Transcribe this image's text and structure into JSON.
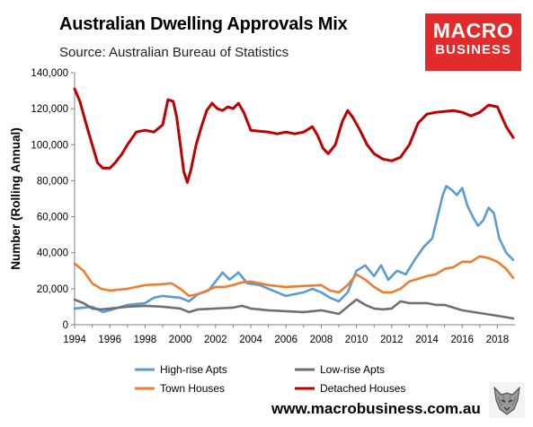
{
  "header": {
    "title": "Australian Dwelling Approvals Mix",
    "subtitle": "Source: Australian Bureau of Statistics"
  },
  "logo": {
    "line1": "MACRO",
    "line2": "BUSINESS"
  },
  "footer": {
    "url": "www.macrobusiness.com.au"
  },
  "colors": {
    "high_rise": "#5b9bd5",
    "low_rise": "#707070",
    "town": "#ed7d31",
    "detached": "#c00000",
    "logo_red": "#e32b2b"
  },
  "chart_data": {
    "type": "line",
    "ylabel": "Number (Rolling Annual)",
    "xlabel": "",
    "ylim": [
      0,
      140000
    ],
    "xlim": [
      1994,
      2019
    ],
    "yticks": [
      "0",
      "20,000",
      "40,000",
      "60,000",
      "80,000",
      "100,000",
      "120,000",
      "140,000"
    ],
    "xticks": [
      "1994",
      "1996",
      "1998",
      "2000",
      "2002",
      "2004",
      "2006",
      "2008",
      "2010",
      "2012",
      "2014",
      "2016",
      "2018"
    ],
    "grid": false,
    "legend_position": "bottom",
    "series": [
      {
        "name": "High-rise Apts",
        "color_key": "high_rise",
        "points": [
          [
            1994,
            9000
          ],
          [
            1995,
            10000
          ],
          [
            1995.6,
            7000
          ],
          [
            1996,
            8000
          ],
          [
            1997,
            11000
          ],
          [
            1998,
            12000
          ],
          [
            1998.5,
            15000
          ],
          [
            1999,
            16000
          ],
          [
            2000,
            15000
          ],
          [
            2000.5,
            13000
          ],
          [
            2001,
            17000
          ],
          [
            2001.6,
            19000
          ],
          [
            2002,
            24000
          ],
          [
            2002.4,
            29000
          ],
          [
            2002.8,
            25000
          ],
          [
            2003.3,
            29000
          ],
          [
            2003.8,
            23000
          ],
          [
            2004.5,
            22000
          ],
          [
            2005,
            20000
          ],
          [
            2005.5,
            18000
          ],
          [
            2006,
            16000
          ],
          [
            2007,
            18000
          ],
          [
            2007.5,
            20000
          ],
          [
            2008,
            18000
          ],
          [
            2008.5,
            15000
          ],
          [
            2009,
            13000
          ],
          [
            2009.5,
            18000
          ],
          [
            2010,
            30000
          ],
          [
            2010.5,
            33000
          ],
          [
            2011,
            27000
          ],
          [
            2011.4,
            33000
          ],
          [
            2011.8,
            25000
          ],
          [
            2012.3,
            30000
          ],
          [
            2012.8,
            28000
          ],
          [
            2013.3,
            36000
          ],
          [
            2013.8,
            43000
          ],
          [
            2014.3,
            48000
          ],
          [
            2014.6,
            60000
          ],
          [
            2014.9,
            72000
          ],
          [
            2015.1,
            77000
          ],
          [
            2015.4,
            75000
          ],
          [
            2015.7,
            72000
          ],
          [
            2016,
            76000
          ],
          [
            2016.3,
            66000
          ],
          [
            2016.6,
            60000
          ],
          [
            2016.9,
            55000
          ],
          [
            2017.2,
            58000
          ],
          [
            2017.5,
            65000
          ],
          [
            2017.8,
            62000
          ],
          [
            2018.1,
            48000
          ],
          [
            2018.5,
            40000
          ],
          [
            2018.9,
            36000
          ]
        ]
      },
      {
        "name": "Low-rise Apts",
        "color_key": "low_rise",
        "points": [
          [
            1994,
            14000
          ],
          [
            1994.5,
            12000
          ],
          [
            1995,
            9000
          ],
          [
            1995.5,
            8500
          ],
          [
            1996,
            9000
          ],
          [
            1997,
            10000
          ],
          [
            1998,
            10500
          ],
          [
            1999,
            10000
          ],
          [
            1999.5,
            9500
          ],
          [
            2000,
            9000
          ],
          [
            2000.5,
            7000
          ],
          [
            2001,
            8500
          ],
          [
            2002,
            9000
          ],
          [
            2003,
            9500
          ],
          [
            2003.5,
            10500
          ],
          [
            2004,
            9000
          ],
          [
            2005,
            8000
          ],
          [
            2006,
            7500
          ],
          [
            2007,
            7000
          ],
          [
            2008,
            8000
          ],
          [
            2008.5,
            7000
          ],
          [
            2009,
            6000
          ],
          [
            2009.5,
            10000
          ],
          [
            2010,
            14000
          ],
          [
            2010.5,
            11000
          ],
          [
            2011,
            9000
          ],
          [
            2011.5,
            8500
          ],
          [
            2012,
            9000
          ],
          [
            2012.5,
            13000
          ],
          [
            2013,
            12000
          ],
          [
            2014,
            12000
          ],
          [
            2014.5,
            11000
          ],
          [
            2015,
            11000
          ],
          [
            2015.5,
            9500
          ],
          [
            2016,
            8000
          ],
          [
            2017,
            6500
          ],
          [
            2018,
            5000
          ],
          [
            2018.9,
            3500
          ]
        ]
      },
      {
        "name": "Town Houses",
        "color_key": "town",
        "points": [
          [
            1994,
            34000
          ],
          [
            1994.5,
            30000
          ],
          [
            1995,
            23000
          ],
          [
            1995.5,
            20000
          ],
          [
            1996,
            19000
          ],
          [
            1997,
            20000
          ],
          [
            1998,
            22000
          ],
          [
            1999,
            22500
          ],
          [
            1999.5,
            23000
          ],
          [
            2000,
            20000
          ],
          [
            2000.5,
            16000
          ],
          [
            2001,
            17000
          ],
          [
            2001.5,
            19000
          ],
          [
            2002,
            21000
          ],
          [
            2002.5,
            21000
          ],
          [
            2003,
            22000
          ],
          [
            2003.5,
            23500
          ],
          [
            2004,
            24000
          ],
          [
            2005,
            22000
          ],
          [
            2006,
            21000
          ],
          [
            2007,
            21500
          ],
          [
            2008,
            22000
          ],
          [
            2008.5,
            19000
          ],
          [
            2009,
            18000
          ],
          [
            2009.5,
            22000
          ],
          [
            2010,
            28000
          ],
          [
            2010.5,
            25000
          ],
          [
            2011,
            21000
          ],
          [
            2011.5,
            18000
          ],
          [
            2012,
            18000
          ],
          [
            2012.5,
            20000
          ],
          [
            2013,
            24000
          ],
          [
            2014,
            27000
          ],
          [
            2014.5,
            28000
          ],
          [
            2015,
            31000
          ],
          [
            2015.5,
            32000
          ],
          [
            2016,
            35000
          ],
          [
            2016.5,
            35000
          ],
          [
            2017,
            38000
          ],
          [
            2017.5,
            37000
          ],
          [
            2018,
            35000
          ],
          [
            2018.5,
            31000
          ],
          [
            2018.9,
            26000
          ]
        ]
      },
      {
        "name": "Detached Houses",
        "color_key": "detached",
        "points": [
          [
            1994,
            131000
          ],
          [
            1994.3,
            124000
          ],
          [
            1994.7,
            110000
          ],
          [
            1995,
            100000
          ],
          [
            1995.3,
            90000
          ],
          [
            1995.6,
            87000
          ],
          [
            1996,
            87000
          ],
          [
            1996.3,
            90000
          ],
          [
            1996.7,
            95000
          ],
          [
            1997,
            100000
          ],
          [
            1997.5,
            107000
          ],
          [
            1998,
            108000
          ],
          [
            1998.5,
            107000
          ],
          [
            1999,
            111000
          ],
          [
            1999.3,
            125000
          ],
          [
            1999.6,
            124000
          ],
          [
            1999.8,
            115000
          ],
          [
            2000,
            100000
          ],
          [
            2000.2,
            85000
          ],
          [
            2000.4,
            79000
          ],
          [
            2000.6,
            86000
          ],
          [
            2000.9,
            100000
          ],
          [
            2001.2,
            110000
          ],
          [
            2001.5,
            119000
          ],
          [
            2001.8,
            123000
          ],
          [
            2002.1,
            120000
          ],
          [
            2002.4,
            119000
          ],
          [
            2002.7,
            121000
          ],
          [
            2003,
            120000
          ],
          [
            2003.3,
            123000
          ],
          [
            2003.6,
            118000
          ],
          [
            2004,
            108000
          ],
          [
            2005,
            107000
          ],
          [
            2005.5,
            106000
          ],
          [
            2006,
            107000
          ],
          [
            2006.5,
            106000
          ],
          [
            2007,
            107000
          ],
          [
            2007.5,
            110000
          ],
          [
            2007.8,
            105000
          ],
          [
            2008.1,
            98000
          ],
          [
            2008.4,
            95000
          ],
          [
            2008.8,
            100000
          ],
          [
            2009.2,
            113000
          ],
          [
            2009.5,
            119000
          ],
          [
            2009.8,
            115000
          ],
          [
            2010.2,
            108000
          ],
          [
            2010.6,
            100000
          ],
          [
            2011,
            95000
          ],
          [
            2011.5,
            92000
          ],
          [
            2012,
            91000
          ],
          [
            2012.5,
            93000
          ],
          [
            2013,
            100000
          ],
          [
            2013.5,
            112000
          ],
          [
            2014,
            117000
          ],
          [
            2014.5,
            118000
          ],
          [
            2015,
            118500
          ],
          [
            2015.5,
            119000
          ],
          [
            2016,
            118000
          ],
          [
            2016.5,
            116000
          ],
          [
            2017,
            118000
          ],
          [
            2017.5,
            122000
          ],
          [
            2018,
            121000
          ],
          [
            2018.5,
            110000
          ],
          [
            2018.9,
            104000
          ]
        ]
      }
    ]
  }
}
